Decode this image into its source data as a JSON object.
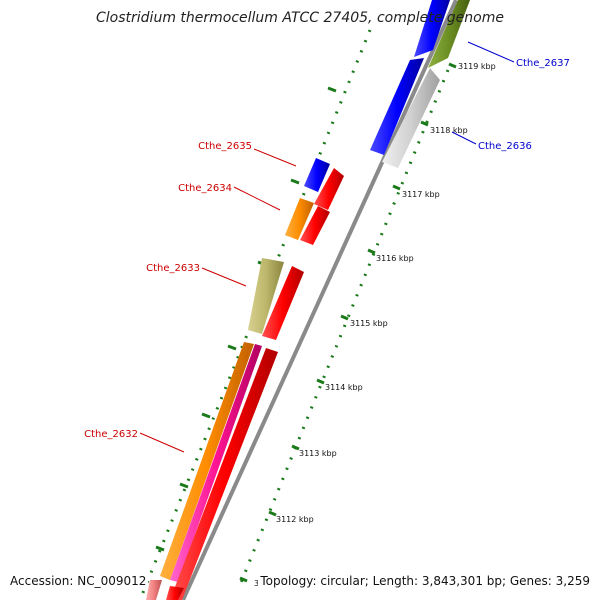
{
  "title": "Clostridium thermocellum ATCC 27405, complete genome",
  "accession": "Accession: NC_009012",
  "topology": "Topology: circular; Length: 3,843,301 bp; Genes: 3,259",
  "colors": {
    "backbone": "#8a8a8a",
    "tick": "#1a7a1a",
    "label_forward": "#0000cc",
    "label_reverse": "#cc0000"
  },
  "scale_labels": [
    "3119 kbp",
    "3118 kbp",
    "3117 kbp",
    "3116 kbp",
    "3115 kbp",
    "3114 kbp",
    "3113 kbp",
    "3112 kbp",
    "3"
  ],
  "gene_labels": [
    "Cthe_2637",
    "Cthe_2636",
    "Cthe_2635",
    "Cthe_2634",
    "Cthe_2633",
    "Cthe_2632"
  ]
}
